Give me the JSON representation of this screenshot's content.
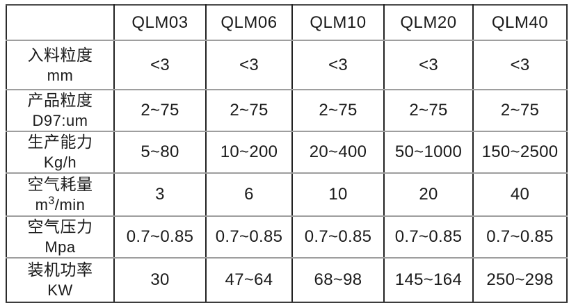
{
  "table": {
    "corner_label": "",
    "header": {
      "models": [
        "QLM03",
        "QLM06",
        "QLM10",
        "QLM20",
        "QLM40"
      ]
    },
    "rows": [
      {
        "label": "入料粒度",
        "unit": "mm",
        "values": [
          "<3",
          "<3",
          "<3",
          "<3",
          "<3"
        ]
      },
      {
        "label": "产品粒度",
        "unit": "D97:um",
        "values": [
          "2~75",
          "2~75",
          "2~75",
          "2~75",
          "2~75"
        ]
      },
      {
        "label": "生产能力",
        "unit": "Kg/h",
        "values": [
          "5~80",
          "10~200",
          "20~400",
          "50~1000",
          "150~2500"
        ]
      },
      {
        "label": "空气耗量",
        "unit_pre": "m",
        "unit_sup": "3",
        "unit_post": "/min",
        "values": [
          "3",
          "6",
          "10",
          "20",
          "40"
        ]
      },
      {
        "label": "空气压力",
        "unit": "Mpa",
        "values": [
          "0.7~0.85",
          "0.7~0.85",
          "0.7~0.85",
          "0.7~0.85",
          "0.7~0.85"
        ]
      },
      {
        "label": "装机功率",
        "unit": "KW",
        "values": [
          "30",
          "47~64",
          "68~98",
          "145~164",
          "250~298"
        ]
      }
    ]
  },
  "colors": {
    "background": "#ffffff",
    "text": "#1b1b1b",
    "border_vertical": "#222222",
    "border_horizontal": "#9e9e9e"
  }
}
